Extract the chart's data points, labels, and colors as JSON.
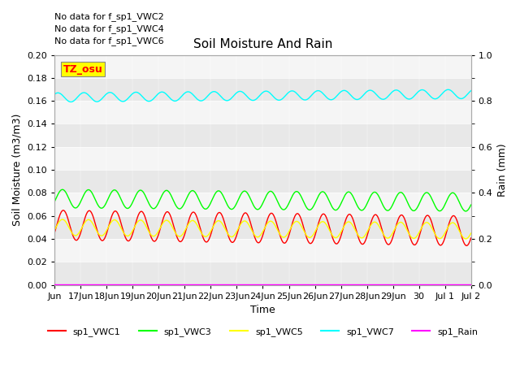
{
  "title": "Soil Moisture And Rain",
  "xlabel": "Time",
  "ylabel_left": "Soil Moisture (m3/m3)",
  "ylabel_right": "Rain (mm)",
  "ylim_left": [
    0.0,
    0.2
  ],
  "ylim_right": [
    0.0,
    1.0
  ],
  "yticks_left": [
    0.0,
    0.02,
    0.04,
    0.06,
    0.08,
    0.1,
    0.12,
    0.14,
    0.16,
    0.18,
    0.2
  ],
  "yticks_right_major": [
    0.0,
    0.2,
    0.4,
    0.6,
    0.8,
    1.0
  ],
  "yticks_right_minor": [
    0.1,
    0.3,
    0.5,
    0.7,
    0.9
  ],
  "no_data_text": [
    "No data for f_sp1_VWC2",
    "No data for f_sp1_VWC4",
    "No data for f_sp1_VWC6"
  ],
  "tz_label": "TZ_osu",
  "legend_labels": [
    "sp1_VWC1",
    "sp1_VWC3",
    "sp1_VWC5",
    "sp1_VWC7",
    "sp1_Rain"
  ],
  "colors": {
    "VWC1": "#ff0000",
    "VWC3": "#00ff00",
    "VWC5": "#ffff00",
    "VWC7": "#00ffff",
    "Rain": "#ff00ff"
  },
  "x_tick_labels": [
    "Jun",
    "17Jun",
    "18Jun",
    "19Jun",
    "20Jun",
    "21Jun",
    "22Jun",
    "23Jun",
    "24Jun",
    "25Jun",
    "26Jun",
    "27Jun",
    "28Jun",
    "29Jun",
    "30",
    "Jul 1",
    "Jul 2"
  ],
  "band_colors": [
    "#e8e8e8",
    "#f5f5f5"
  ],
  "figsize": [
    6.4,
    4.8
  ],
  "dpi": 100
}
